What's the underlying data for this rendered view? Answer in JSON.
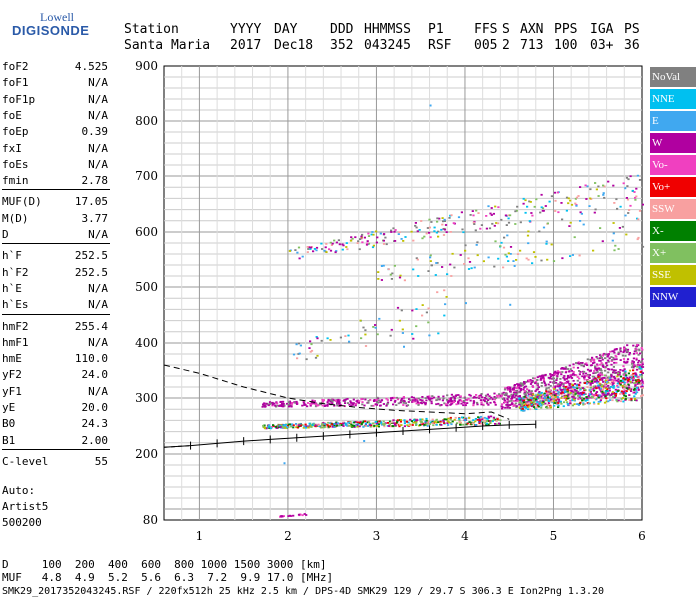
{
  "logo": {
    "line1": "Lowell",
    "line2": "DIGISONDE"
  },
  "header": {
    "row1": [
      "Station",
      "YYYY",
      "DAY",
      "DDD",
      "HHMMSS",
      "P1",
      "FFS",
      "S",
      "AXN",
      "PPS",
      "IGA",
      "PS"
    ],
    "row2": [
      "Santa Maria",
      "2017",
      "Dec18",
      "352",
      "043245",
      "RSF",
      "005",
      "2",
      "713",
      "100",
      "03+",
      "36"
    ]
  },
  "params": [
    {
      "k": "foF2",
      "v": "4.525"
    },
    {
      "k": "foF1",
      "v": "N/A"
    },
    {
      "k": "foF1p",
      "v": "N/A"
    },
    {
      "k": "foE",
      "v": "N/A"
    },
    {
      "k": "foEp",
      "v": "0.39"
    },
    {
      "k": "fxI",
      "v": "N/A"
    },
    {
      "k": "foEs",
      "v": "N/A"
    },
    {
      "k": "fmin",
      "v": "2.78"
    },
    {
      "k": "MUF(D)",
      "v": "17.05"
    },
    {
      "k": "M(D)",
      "v": "3.77"
    },
    {
      "k": "D",
      "v": "N/A"
    },
    {
      "k": "h`F",
      "v": "252.5"
    },
    {
      "k": "h`F2",
      "v": "252.5"
    },
    {
      "k": "h`E",
      "v": "N/A"
    },
    {
      "k": "h`Es",
      "v": "N/A"
    },
    {
      "k": "hmF2",
      "v": "255.4"
    },
    {
      "k": "hmF1",
      "v": "N/A"
    },
    {
      "k": "hmE",
      "v": "110.0"
    },
    {
      "k": "yF2",
      "v": "24.0"
    },
    {
      "k": "yF1",
      "v": "N/A"
    },
    {
      "k": "yE",
      "v": "20.0"
    },
    {
      "k": "B0",
      "v": "24.3"
    },
    {
      "k": "B1",
      "v": "2.00"
    },
    {
      "k": "C-level",
      "v": "55"
    }
  ],
  "autoscaling": {
    "line1": "Auto:",
    "line2": "Artist5",
    "line3": "500200"
  },
  "legend": [
    {
      "label": "NoVal",
      "color": "#808080"
    },
    {
      "label": "NNE",
      "color": "#00c0f0"
    },
    {
      "label": "E",
      "color": "#40a8f0"
    },
    {
      "label": "W",
      "color": "#b000a0"
    },
    {
      "label": "Vo-",
      "color": "#f040c0"
    },
    {
      "label": "Vo+",
      "color": "#f00000"
    },
    {
      "label": "SSW",
      "color": "#f8a0a0"
    },
    {
      "label": "X-",
      "color": "#008000"
    },
    {
      "label": "X+",
      "color": "#80c060"
    },
    {
      "label": "SSE",
      "color": "#c0c000"
    },
    {
      "label": "NNW",
      "color": "#2020d0"
    }
  ],
  "mufTable": {
    "dRow": "D     100  200  400  600  800 1000 1500 3000 [km]",
    "mufRow": "MUF   4.8  4.9  5.2  5.6  6.3  7.2  9.9 17.0 [MHz]"
  },
  "footer": "SMK29_2017352043245.RSF / 220fx512h 25 kHz 2.5 km / DPS-4D SMK29 129 / 29.7 S 306.3 E Ion2Png 1.3.20",
  "chart_data": {
    "type": "scatter",
    "xlim": [
      0.6,
      6.0
    ],
    "ylim": [
      80,
      900
    ],
    "xticks": [
      "1",
      "2",
      "3",
      "4",
      "5",
      "6"
    ],
    "yticks": [
      "80",
      "200",
      "300",
      "400",
      "500",
      "600",
      "700",
      "800",
      "900"
    ],
    "grid": true,
    "legend_placement": "right",
    "profile_curve": {
      "x": [
        0.6,
        1.0,
        1.5,
        2.0,
        2.4,
        2.8,
        3.2,
        3.6,
        4.0,
        4.3,
        4.5
      ],
      "y": [
        360,
        345,
        320,
        300,
        290,
        283,
        278,
        275,
        272,
        275,
        262
      ]
    },
    "lower_trace": {
      "x": [
        0.6,
        0.9,
        1.2,
        1.5,
        1.8,
        2.1,
        2.4,
        2.7,
        3.0,
        3.3,
        3.6,
        3.9,
        4.2,
        4.5,
        4.8
      ],
      "y": [
        212,
        215,
        219,
        223,
        226,
        229,
        232,
        235,
        238,
        241,
        244,
        247,
        250,
        252,
        253
      ]
    }
  }
}
